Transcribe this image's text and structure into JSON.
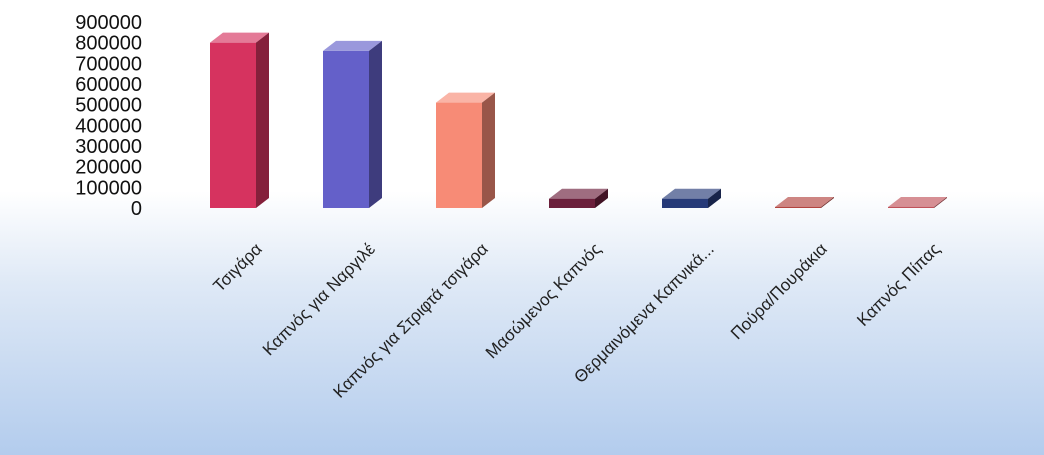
{
  "chart_data": {
    "type": "bar",
    "style": "3d-column",
    "categories": [
      "Τσιγάρα",
      "Καπνός για Ναργιλέ",
      "Καπνός για Στριφτά τσιγάρα",
      "Μασώμενος Καπνός",
      "Θερμαινόμενα Καπνικά...",
      "Πούρα/Πουράκια",
      "Καπνός Πίπας"
    ],
    "values": [
      800000,
      760000,
      510000,
      45000,
      45000,
      5000,
      5000
    ],
    "colors": [
      "#d6335f",
      "#6460c9",
      "#f78b76",
      "#6b1f3b",
      "#263a78",
      "#b2443f",
      "#c0525a"
    ],
    "yticks": [
      "0",
      "100000",
      "200000",
      "300000",
      "400000",
      "500000",
      "600000",
      "700000",
      "800000",
      "900000"
    ],
    "ylim": [
      0,
      900000
    ],
    "grid": false,
    "legend": "none"
  }
}
